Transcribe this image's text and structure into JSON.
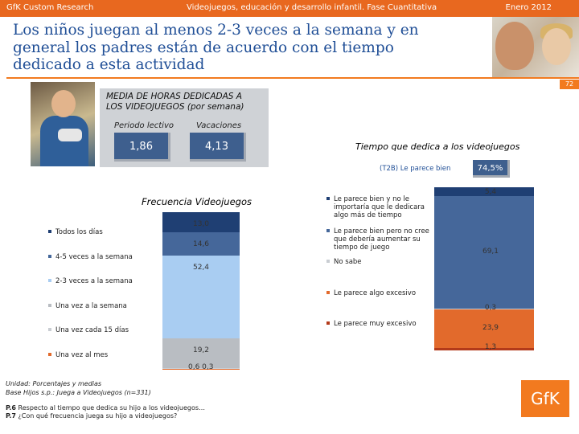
{
  "header": {
    "left": "GfK Custom Research",
    "center": "Videojuegos, educación y desarrollo infantil. Fase Cuantitativa",
    "right": "Enero 2012"
  },
  "title": {
    "line1": "Los niños juegan al menos 2-3 veces a la semana y en",
    "line2": "general los padres están de acuerdo con el tiempo",
    "line3": "dedicado a esta actividad"
  },
  "page_number": "72",
  "stats": {
    "title_line1": "MEDIA DE HORAS DEDICADAS A",
    "title_line2": "LOS VIDEOJUEGOS (por semana)",
    "periodo_label": "Periodo lectivo",
    "vacaciones_label": "Vacaciones",
    "periodo_value": "1,86",
    "vacaciones_value": "4,13"
  },
  "t2b": {
    "label": "(T2B) Le parece bien",
    "value": "74,5%"
  },
  "footnotes": {
    "unidad": "Unidad: Porcentajes y medias",
    "base": "Base Hijos s.p.: Juega a Videojuegos (n=331)",
    "p6_code": "P.6",
    "p6_text": "Respecto al tiempo que dedica su hijo a los videojuegos…",
    "p7_code": "P.7",
    "p7_text": "¿Con qué frecuencia juega su hijo a videojuegos?"
  },
  "logo_text": "GfK",
  "chart_data": [
    {
      "type": "bar",
      "stacked": true,
      "title": "Frecuencia Videojuegos",
      "series": [
        {
          "name": "Todos los días",
          "value": 13.0,
          "label": "13,0",
          "color": "#1f3f73"
        },
        {
          "name": "4-5 veces a la semana",
          "value": 14.6,
          "label": "14,6",
          "color": "#45679a"
        },
        {
          "name": "2-3 veces a la semana",
          "value": 52.4,
          "label": "52,4",
          "color": "#a9cdf2"
        },
        {
          "name": "Una vez a la semana",
          "value": 19.2,
          "label": "19,2",
          "color": "#b9bdc2"
        },
        {
          "name": "Una vez cada 15 días",
          "value": 0.6,
          "label": "0,6",
          "color": "#c9cdd2"
        },
        {
          "name": "Una vez al mes",
          "value": 0.3,
          "label": "0,3",
          "color": "#e26a2c"
        }
      ],
      "ylim": [
        0,
        100
      ],
      "legend": "left"
    },
    {
      "type": "bar",
      "stacked": true,
      "title": "Tiempo que dedica a los videojuegos",
      "series": [
        {
          "name_lines": [
            "Le parece bien y no le",
            "importaría que le dedicara",
            "algo más de tiempo"
          ],
          "value": 5.4,
          "label": "5,4",
          "color": "#1f3f73"
        },
        {
          "name_lines": [
            "Le parece bien pero no cree",
            "que debería aumentar su",
            "tiempo de juego"
          ],
          "value": 69.1,
          "label": "69,1",
          "color": "#45679a"
        },
        {
          "name_lines": [
            "No sabe"
          ],
          "value": 0.3,
          "label": "0,3",
          "color": "#c9cdd2"
        },
        {
          "name_lines": [
            "Le parece algo excesivo"
          ],
          "value": 23.9,
          "label": "23,9",
          "color": "#e26a2c"
        },
        {
          "name_lines": [
            "Le parece muy excesivo"
          ],
          "value": 1.3,
          "label": "1,3",
          "color": "#b33a1a"
        }
      ],
      "ylim": [
        0,
        100
      ],
      "legend": "left"
    }
  ]
}
